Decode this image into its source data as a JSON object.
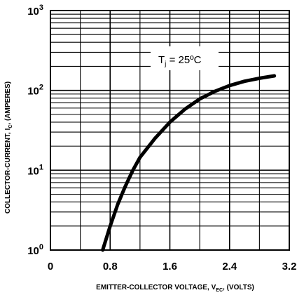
{
  "chart_data": {
    "type": "line",
    "title": "",
    "xlabel": {
      "pre": "EMITTER-COLLECTOR VOLTAGE, V",
      "sub": "EC",
      "post": ", (VOLTS)"
    },
    "ylabel": {
      "pre": "COLLECTOR-CURRENT, I",
      "sub": "C",
      "post": ", (AMPERES)"
    },
    "annotation": {
      "pre": "T",
      "sub": "j",
      "post": " = 25ºC"
    },
    "x_ticks": [
      {
        "value": 0,
        "label": "0"
      },
      {
        "value": 0.8,
        "label": "0.8"
      },
      {
        "value": 1.6,
        "label": "1.6"
      },
      {
        "value": 2.4,
        "label": "2.4"
      },
      {
        "value": 3.2,
        "label": "3.2"
      }
    ],
    "y_ticks": [
      {
        "value": 1,
        "base": "10",
        "exp": "0"
      },
      {
        "value": 10,
        "base": "10",
        "exp": "1"
      },
      {
        "value": 100,
        "base": "10",
        "exp": "2"
      },
      {
        "value": 1000,
        "base": "10",
        "exp": "3"
      }
    ],
    "xlim": [
      0,
      3.2
    ],
    "ylim": [
      1,
      1000
    ],
    "y_scale": "log",
    "grid": true,
    "series": [
      {
        "x": [
          0.7,
          0.8,
          0.9,
          1.0,
          1.1,
          1.2,
          1.4,
          1.6,
          1.8,
          2.0,
          2.2,
          2.4,
          2.6,
          2.8,
          3.0
        ],
        "y": [
          1.0,
          2.0,
          3.7,
          6.2,
          9.8,
          14.5,
          25,
          40,
          58,
          78,
          97,
          115,
          130,
          142,
          152
        ],
        "color": "#000000"
      }
    ]
  }
}
